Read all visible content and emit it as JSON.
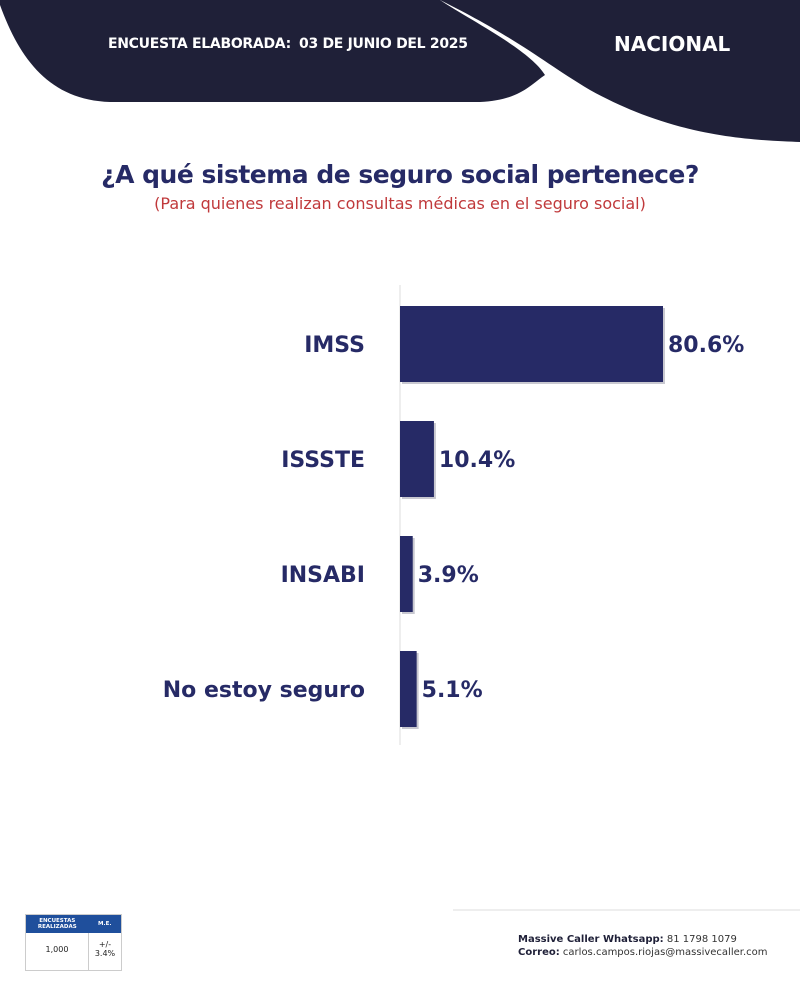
{
  "header": {
    "survey_label": "ENCUESTA ELABORADA:",
    "survey_date": "03 DE JUNIO DEL 2025",
    "region": "NACIONAL"
  },
  "colors": {
    "header": "#1f2038",
    "bar": "#262a66",
    "subtitle": "#c0393b",
    "table_header": "#1f4f9c"
  },
  "chart_data": {
    "type": "bar",
    "orientation": "horizontal",
    "title": "¿A qué sistema de seguro social pertenece?",
    "subtitle": "(Para quienes realizan consultas médicas en el seguro social)",
    "categories": [
      "IMSS",
      "ISSSTE",
      "INSABI",
      "No estoy seguro"
    ],
    "values": [
      80.6,
      10.4,
      3.9,
      5.1
    ],
    "value_labels": [
      "80.6%",
      "10.4%",
      "3.9%",
      "5.1%"
    ],
    "xlabel": "",
    "ylabel": "",
    "xlim": [
      0,
      100
    ],
    "grid": false
  },
  "stats": {
    "surveys_header": "ENCUESTAS REALIZADAS",
    "me_header": "M.E.",
    "surveys_value": "1,000",
    "me_value": "+/- 3.4%"
  },
  "contact": {
    "whatsapp_label": "Massive Caller Whatsapp:",
    "whatsapp_value": "81 1798 1079",
    "email_label": "Correo:",
    "email_value": "carlos.campos.riojas@massivecaller.com"
  }
}
